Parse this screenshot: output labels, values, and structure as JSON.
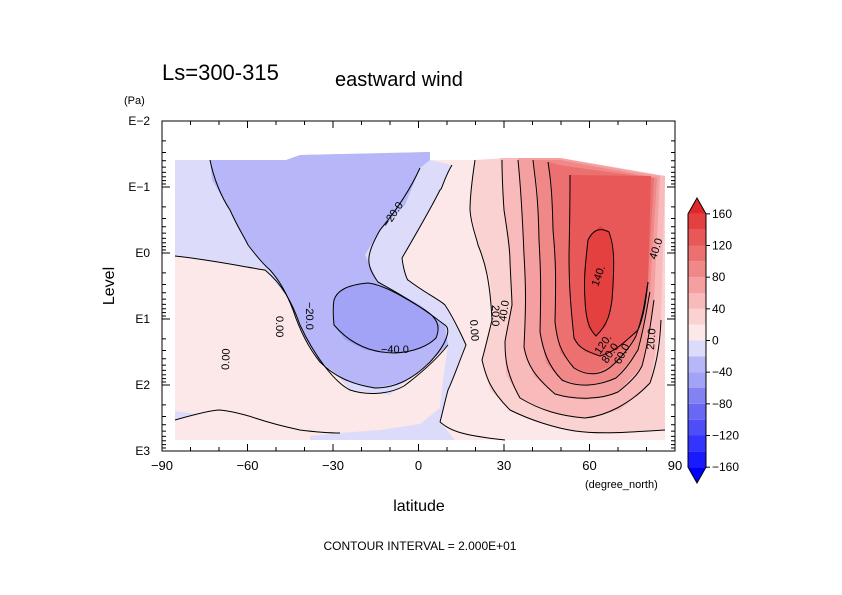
{
  "chart_data": {
    "type": "heatmap",
    "subtype": "latitude-pressure contour plot with filled contours",
    "title": "Ls=300-315",
    "subtitle": "eastward wind",
    "xlabel": "latitude",
    "x_unit": "(degree_north)",
    "ylabel": "Level",
    "y_unit": "(Pa)",
    "footer": "CONTOUR INTERVAL = 2.000E+01",
    "x_range": [
      -90,
      90
    ],
    "x_ticks": [
      -90,
      -60,
      -30,
      0,
      30,
      60,
      90
    ],
    "x_tick_labels": [
      "−90",
      "−60",
      "−30",
      "0",
      "30",
      "60",
      "90"
    ],
    "y_scale": "log",
    "y_range_pa": [
      1000,
      0.01
    ],
    "y_tick_values": [
      1000,
      100,
      10,
      1,
      0.1,
      0.01
    ],
    "y_tick_labels": [
      "E3",
      "E2",
      "E1",
      "E0",
      "E−1",
      "E−2"
    ],
    "contour_interval": 20,
    "contour_labels": [
      {
        "text": "−20.0",
        "lat": -12,
        "level_pa": 0.5
      },
      {
        "text": "0.00",
        "lat": -45,
        "level_pa": 10
      },
      {
        "text": "−20.0",
        "lat": -35,
        "level_pa": 10
      },
      {
        "text": "−40.0",
        "lat": -5,
        "level_pa": 30
      },
      {
        "text": "0.00",
        "lat": 20,
        "level_pa": 15
      },
      {
        "text": "20.0",
        "lat": 28,
        "level_pa": 8
      },
      {
        "text": "40.0",
        "lat": 33,
        "level_pa": 15
      },
      {
        "text": "0.00",
        "lat": -62,
        "level_pa": 150
      },
      {
        "text": "140.",
        "lat": 64,
        "level_pa": 5
      },
      {
        "text": "120.",
        "lat": 60,
        "level_pa": 30
      },
      {
        "text": "80.0",
        "lat": 64,
        "level_pa": 25
      },
      {
        "text": "60.0",
        "lat": 68,
        "level_pa": 25
      },
      {
        "text": "40.0",
        "lat": 80,
        "level_pa": 0.9
      },
      {
        "text": "20.0",
        "lat": 80,
        "level_pa": 20
      }
    ],
    "colorbar": {
      "levels": [
        -160,
        -120,
        -80,
        -40,
        0,
        40,
        80,
        120,
        160
      ],
      "tick_labels": [
        "−160",
        "−120",
        "−80",
        "−40",
        "0",
        "40",
        "80",
        "120",
        "160"
      ],
      "bins": [
        {
          "min": -180,
          "max": -160,
          "color": "#0000ff"
        },
        {
          "min": -160,
          "max": -140,
          "color": "#1a1aff"
        },
        {
          "min": -140,
          "max": -120,
          "color": "#3434ff"
        },
        {
          "min": -120,
          "max": -100,
          "color": "#4e4ef8"
        },
        {
          "min": -100,
          "max": -80,
          "color": "#6868f4"
        },
        {
          "min": -80,
          "max": -60,
          "color": "#8282f2"
        },
        {
          "min": -60,
          "max": -40,
          "color": "#a2a2f6"
        },
        {
          "min": -40,
          "max": -20,
          "color": "#b6b6f8"
        },
        {
          "min": -20,
          "max": 0,
          "color": "#dcdcfa"
        },
        {
          "min": 0,
          "max": 20,
          "color": "#fce8e8"
        },
        {
          "min": 20,
          "max": 40,
          "color": "#fbd2d2"
        },
        {
          "min": 40,
          "max": 60,
          "color": "#f8baba"
        },
        {
          "min": 60,
          "max": 80,
          "color": "#f4a0a0"
        },
        {
          "min": 80,
          "max": 100,
          "color": "#f08888"
        },
        {
          "min": 100,
          "max": 120,
          "color": "#ec7070"
        },
        {
          "min": 120,
          "max": 140,
          "color": "#e85858"
        },
        {
          "min": 140,
          "max": 160,
          "color": "#e44040"
        },
        {
          "min": 160,
          "max": 180,
          "color": "#e02828"
        }
      ]
    }
  }
}
